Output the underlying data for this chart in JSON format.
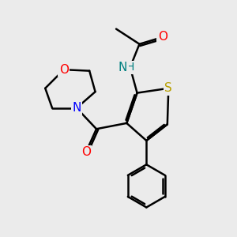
{
  "bg_color": "#ebebeb",
  "bond_color": "#000000",
  "bond_lw": 1.8,
  "atom_colors": {
    "S": "#b8a000",
    "O": "#ff0000",
    "N": "#0000ff",
    "NH": "#008080",
    "C": "#000000"
  },
  "font_size": 10,
  "fig_size": [
    3.0,
    3.0
  ],
  "dpi": 100
}
